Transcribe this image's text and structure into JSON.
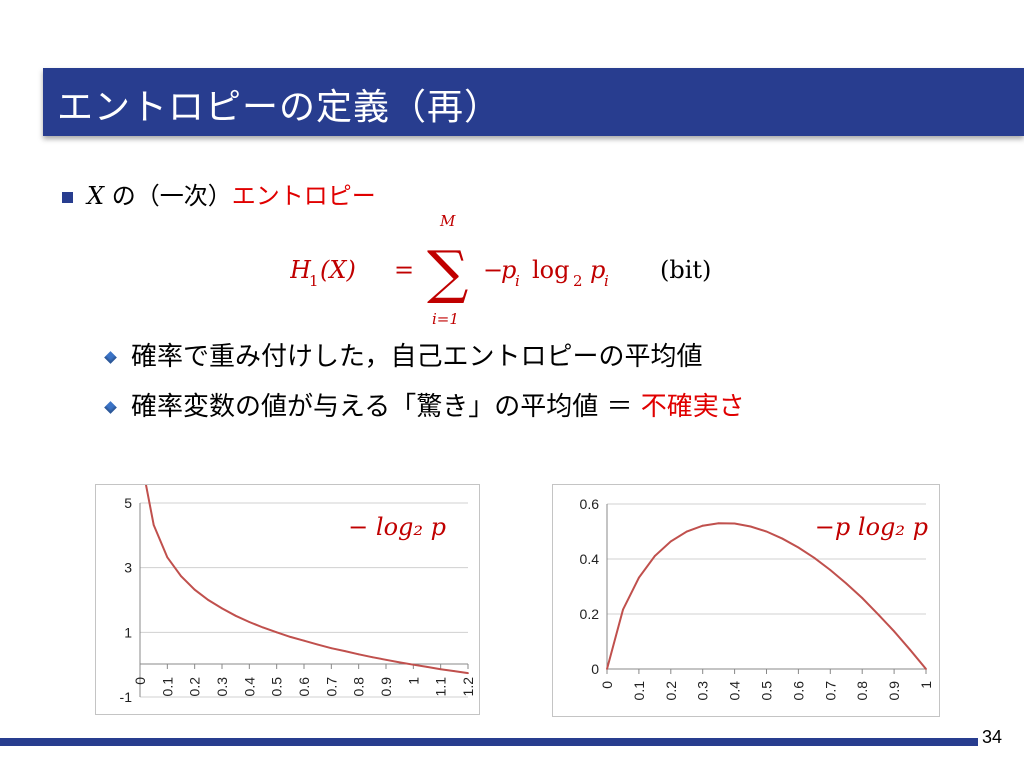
{
  "slide": {
    "title": "エントロピーの定義（再）",
    "page_number": "34"
  },
  "bullet_main": {
    "var": "X",
    "text_pre": " の（一次）",
    "text_red": "エントロピー"
  },
  "formula": {
    "lhs_base": "H",
    "lhs_sub": "1",
    "lhs_arg": "(X)",
    "equals": "=",
    "sum_upper": "M",
    "sum_lower": "i=1",
    "sum_symbol": "∑",
    "term_minus": "−",
    "term_p": "p",
    "term_i": "i",
    "term_log": "log",
    "term_log_base": "2",
    "unit": "(bit)"
  },
  "sub_bullets": {
    "item1": "確率で重み付けした，自己エントロピーの平均値",
    "item2_pre": "確率変数の値が与える「驚き」の平均値 ＝ ",
    "item2_red": "不確実さ"
  },
  "chart_data": [
    {
      "type": "line",
      "title": "− log₂ p",
      "x": [
        0.02,
        0.05,
        0.1,
        0.15,
        0.2,
        0.25,
        0.3,
        0.35,
        0.4,
        0.45,
        0.5,
        0.55,
        0.6,
        0.65,
        0.7,
        0.75,
        0.8,
        0.85,
        0.9,
        0.95,
        1.0,
        1.05,
        1.1,
        1.15,
        1.2
      ],
      "y": [
        5.64,
        4.32,
        3.32,
        2.74,
        2.32,
        2.0,
        1.74,
        1.51,
        1.32,
        1.15,
        1.0,
        0.86,
        0.74,
        0.62,
        0.51,
        0.42,
        0.32,
        0.23,
        0.15,
        0.07,
        0.0,
        -0.07,
        -0.14,
        -0.2,
        -0.26
      ],
      "categories": [
        "0",
        "0.1",
        "0.2",
        "0.3",
        "0.4",
        "0.5",
        "0.6",
        "0.7",
        "0.8",
        "0.9",
        "1",
        "1.1",
        "1.2"
      ],
      "y_ticks": [
        "5",
        "3",
        "1",
        "-1"
      ],
      "ylim": [
        -1,
        5
      ],
      "xlim": [
        0,
        1.2
      ],
      "grid": true,
      "line_color": "#c0504d"
    },
    {
      "type": "line",
      "title": "−p log₂ p",
      "x": [
        0,
        0.05,
        0.1,
        0.15,
        0.2,
        0.25,
        0.3,
        0.35,
        0.4,
        0.45,
        0.5,
        0.55,
        0.6,
        0.65,
        0.7,
        0.75,
        0.8,
        0.85,
        0.9,
        0.95,
        1.0
      ],
      "y": [
        0,
        0.216,
        0.332,
        0.411,
        0.464,
        0.5,
        0.521,
        0.53,
        0.529,
        0.518,
        0.5,
        0.474,
        0.442,
        0.404,
        0.36,
        0.311,
        0.258,
        0.199,
        0.137,
        0.07,
        0
      ],
      "categories": [
        "0",
        "0.1",
        "0.2",
        "0.3",
        "0.4",
        "0.5",
        "0.6",
        "0.7",
        "0.8",
        "0.9",
        "1"
      ],
      "y_ticks": [
        "0.6",
        "0.4",
        "0.2",
        "0"
      ],
      "ylim": [
        0,
        0.6
      ],
      "xlim": [
        0,
        1
      ],
      "grid": true,
      "line_color": "#c0504d"
    }
  ]
}
